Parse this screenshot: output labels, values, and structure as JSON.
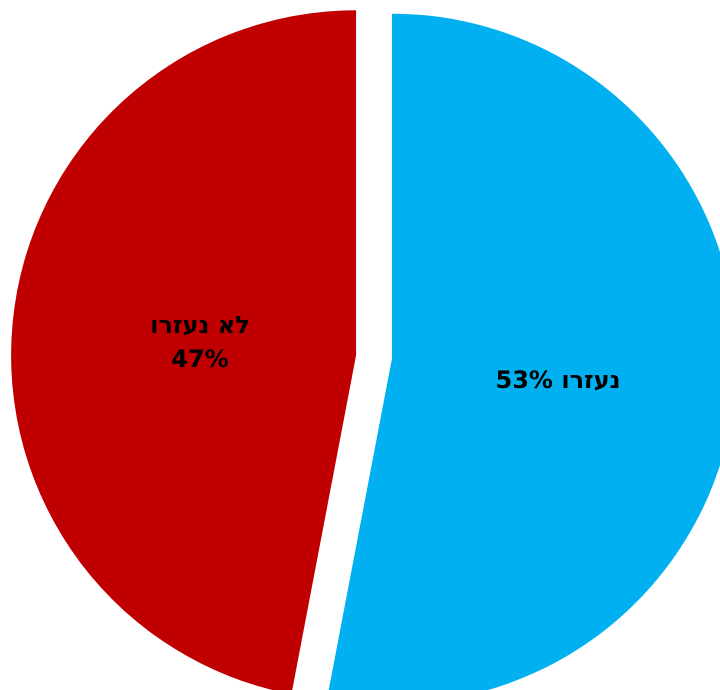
{
  "chart_data": {
    "type": "pie",
    "title": "",
    "slices": [
      {
        "label": "נעזרו",
        "value": 53,
        "value_text": "53%",
        "label_text": "נעזרו 53%",
        "color": "#00B0F0"
      },
      {
        "label": "לא נעזרו",
        "value": 47,
        "value_text": "47%",
        "label_text_line1": "לא נעזרו",
        "label_text_line2": "47%",
        "color": "#C00000"
      }
    ],
    "start_angle": "12 o'clock",
    "direction": "clockwise",
    "exploded": true,
    "legend": "none"
  }
}
